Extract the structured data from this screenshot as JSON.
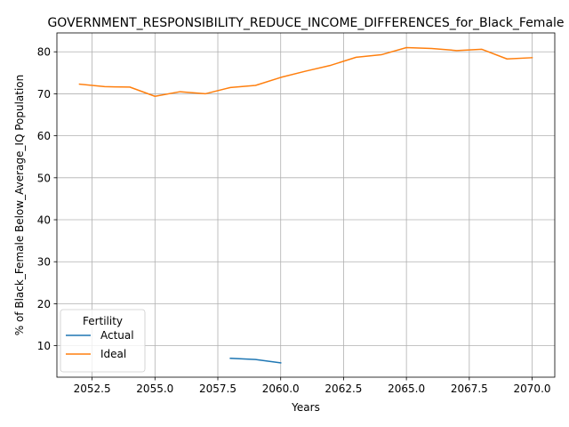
{
  "chart_data": {
    "type": "line",
    "title": "GOVERNMENT_RESPONSIBILITY_REDUCE_INCOME_DIFFERENCES_for_Black_Female",
    "xlabel": "Years",
    "ylabel": "% of Black_Female Below_Average_IQ Population",
    "xlim": [
      2051.1,
      2070.9
    ],
    "ylim": [
      2.5,
      84.5
    ],
    "xticks": [
      2052.5,
      2055.0,
      2057.5,
      2060.0,
      2062.5,
      2065.0,
      2067.5,
      2070.0
    ],
    "xtick_labels": [
      "2052.5",
      "2055.0",
      "2057.5",
      "2060.0",
      "2062.5",
      "2065.0",
      "2067.5",
      "2070.0"
    ],
    "yticks": [
      10,
      20,
      30,
      40,
      50,
      60,
      70,
      80
    ],
    "ytick_labels": [
      "10",
      "20",
      "30",
      "40",
      "50",
      "60",
      "70",
      "80"
    ],
    "grid": true,
    "legend": {
      "title": "Fertility",
      "placement": "lower-left"
    },
    "series": [
      {
        "name": "Actual",
        "color": "#1f77b4",
        "x": [
          2058,
          2059,
          2060
        ],
        "y": [
          7.0,
          6.7,
          5.9
        ]
      },
      {
        "name": "Ideal",
        "color": "#ff7f0e",
        "x": [
          2052,
          2053,
          2054,
          2055,
          2056,
          2057,
          2058,
          2059,
          2060,
          2061,
          2062,
          2063,
          2064,
          2065,
          2066,
          2067,
          2068,
          2069,
          2070
        ],
        "y": [
          72.3,
          71.7,
          71.6,
          69.4,
          70.5,
          70.0,
          71.5,
          72.0,
          73.9,
          75.4,
          76.8,
          78.7,
          79.3,
          81.0,
          80.8,
          80.3,
          80.6,
          78.3,
          78.6
        ]
      }
    ]
  }
}
